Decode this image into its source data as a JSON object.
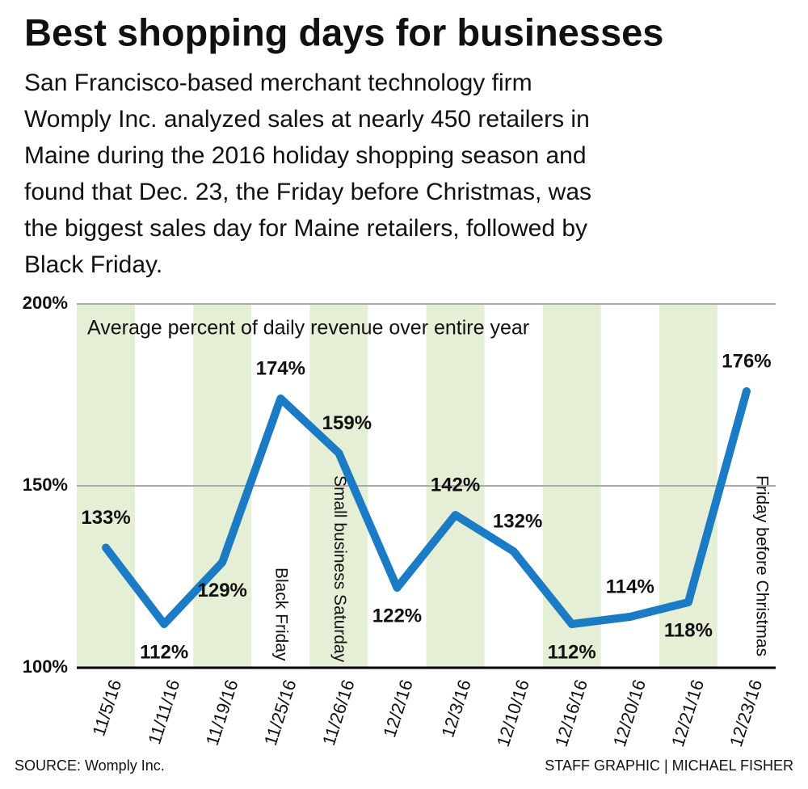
{
  "chart_data": {
    "type": "line",
    "title": "Best shopping days for businesses",
    "subtitle": [
      "San Francisco-based merchant technology firm",
      "Womply Inc. analyzed sales at nearly 450 retailers in",
      "Maine during the 2016 holiday shopping season and",
      "found that Dec. 23, the Friday before Christmas, was",
      "the biggest sales day for Maine retailers, followed by",
      "Black Friday."
    ],
    "y_label": "Average percent of daily revenue over entire year",
    "categories": [
      "11/5/16",
      "11/11/16",
      "11/19/16",
      "11/25/16",
      "11/26/16",
      "12/2/16",
      "12/3/16",
      "12/10/16",
      "12/16/16",
      "12/20/16",
      "12/21/16",
      "12/23/16"
    ],
    "values": [
      133,
      112,
      129,
      174,
      159,
      122,
      142,
      132,
      112,
      114,
      118,
      176
    ],
    "value_labels": [
      "133%",
      "112%",
      "129%",
      "174%",
      "159%",
      "122%",
      "142%",
      "132%",
      "112%",
      "114%",
      "118%",
      "176%"
    ],
    "color": "#1b7bc4",
    "band_color": "#e5efd6",
    "ylim": [
      100,
      200
    ],
    "yticks": [
      {
        "value": 100,
        "label": "100%"
      },
      {
        "value": 150,
        "label": "150%"
      },
      {
        "value": 200,
        "label": "200%"
      }
    ],
    "grid": true,
    "annotations": [
      {
        "category": "11/25/16",
        "text": "Black Friday"
      },
      {
        "category": "11/26/16",
        "text": "Small business Saturday"
      },
      {
        "category": "12/23/16",
        "text": "Friday before Christmas"
      }
    ],
    "source": "SOURCE: Womply Inc.",
    "credit": "STAFF GRAPHIC | MICHAEL FISHER"
  }
}
